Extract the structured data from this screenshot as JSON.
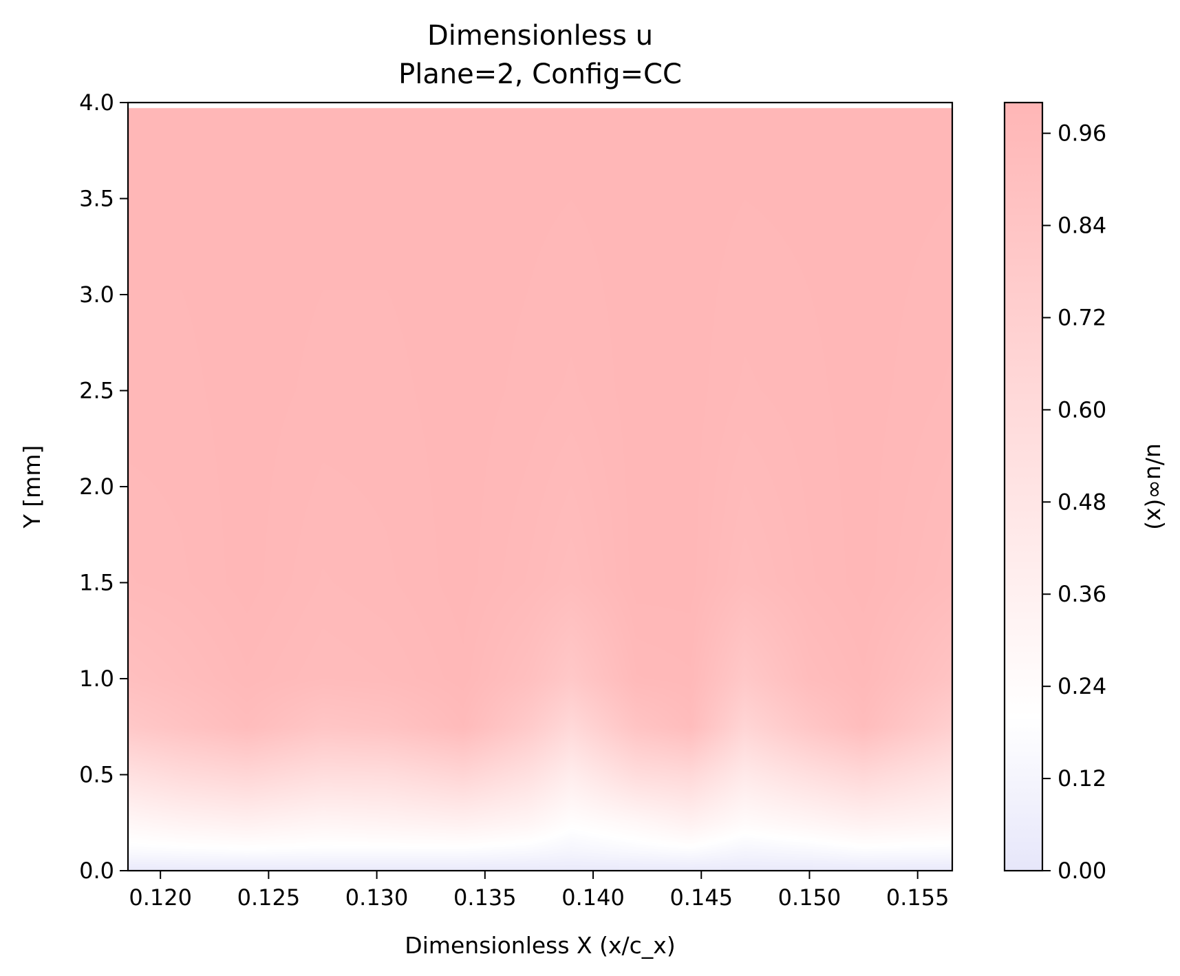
{
  "chart_data": {
    "type": "heatmap",
    "title": "Dimensionless u",
    "subtitle": "Plane=2, Config=CC",
    "xlabel": "Dimensionless X (x/c_x)",
    "ylabel": "Y [mm]",
    "xlim": [
      0.1185,
      0.1566
    ],
    "ylim": [
      0.0,
      4.0
    ],
    "data_ymax": 3.97,
    "xticks": [
      0.12,
      0.125,
      0.13,
      0.135,
      0.14,
      0.145,
      0.15,
      0.155
    ],
    "xtick_labels": [
      "0.120",
      "0.125",
      "0.130",
      "0.135",
      "0.140",
      "0.145",
      "0.150",
      "0.155"
    ],
    "yticks": [
      0.0,
      0.5,
      1.0,
      1.5,
      2.0,
      2.5,
      3.0,
      3.5,
      4.0
    ],
    "ytick_labels": [
      "0.0",
      "0.5",
      "1.0",
      "1.5",
      "2.0",
      "2.5",
      "3.0",
      "3.5",
      "4.0"
    ],
    "colorbar": {
      "label": "u/u∞(x)",
      "range": [
        0.0,
        1.0
      ],
      "ticks": [
        0.0,
        0.12,
        0.24,
        0.36,
        0.48,
        0.6,
        0.72,
        0.84,
        0.96
      ],
      "tick_labels": [
        "0.00",
        "0.12",
        "0.24",
        "0.36",
        "0.48",
        "0.60",
        "0.72",
        "0.84",
        "0.96"
      ],
      "colormap": "bwr-light",
      "color_stops": [
        {
          "value": 0.0,
          "color": "#e6e6fa"
        },
        {
          "value": 0.2,
          "color": "#ffffff"
        },
        {
          "value": 1.0,
          "color": "#ffb6b6"
        }
      ]
    },
    "x": [
      0.1185,
      0.121,
      0.124,
      0.1275,
      0.1305,
      0.134,
      0.137,
      0.139,
      0.142,
      0.1445,
      0.147,
      0.15,
      0.1525,
      0.1566
    ],
    "y": [
      0.0,
      0.1,
      0.25,
      0.5,
      0.75,
      1.0,
      1.5,
      2.5,
      3.97
    ],
    "values": [
      [
        0.03,
        0.03,
        0.03,
        0.03,
        0.03,
        0.03,
        0.03,
        0.03,
        0.03,
        0.03,
        0.03,
        0.03,
        0.03,
        0.03
      ],
      [
        0.16,
        0.17,
        0.18,
        0.17,
        0.17,
        0.17,
        0.15,
        0.12,
        0.15,
        0.17,
        0.12,
        0.14,
        0.17,
        0.16
      ],
      [
        0.29,
        0.33,
        0.36,
        0.31,
        0.33,
        0.36,
        0.31,
        0.22,
        0.28,
        0.35,
        0.25,
        0.3,
        0.35,
        0.31
      ],
      [
        0.53,
        0.6,
        0.65,
        0.57,
        0.58,
        0.66,
        0.54,
        0.4,
        0.58,
        0.62,
        0.44,
        0.55,
        0.63,
        0.5
      ],
      [
        0.8,
        0.86,
        0.93,
        0.83,
        0.86,
        0.95,
        0.78,
        0.62,
        0.85,
        0.93,
        0.66,
        0.82,
        0.93,
        0.72
      ],
      [
        0.9,
        0.93,
        0.97,
        0.94,
        0.95,
        0.98,
        0.9,
        0.8,
        0.96,
        0.97,
        0.8,
        0.93,
        0.97,
        0.85
      ],
      [
        0.96,
        0.97,
        0.99,
        0.96,
        0.97,
        0.99,
        0.96,
        0.93,
        0.99,
        0.99,
        0.93,
        0.97,
        0.99,
        0.94
      ],
      [
        0.98,
        0.98,
        0.99,
        0.98,
        0.98,
        0.99,
        0.98,
        0.97,
        0.99,
        0.99,
        0.97,
        0.98,
        0.99,
        0.97
      ],
      [
        0.99,
        0.99,
        0.99,
        0.99,
        0.99,
        0.99,
        0.99,
        0.99,
        0.99,
        0.99,
        0.99,
        0.99,
        0.99,
        0.99
      ]
    ],
    "grid": false
  }
}
